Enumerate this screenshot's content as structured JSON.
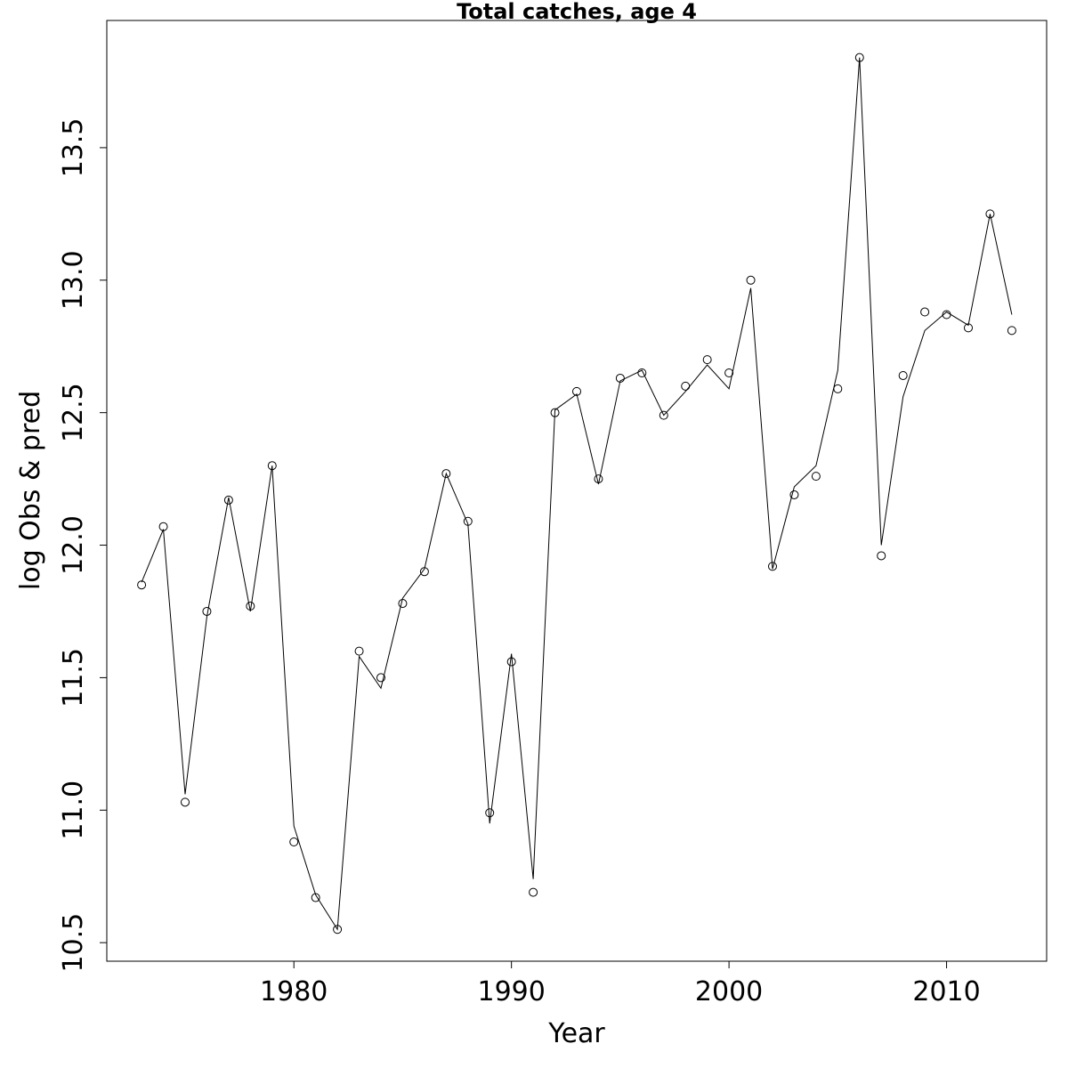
{
  "chart_data": {
    "type": "line",
    "title": "Total catches, age 4",
    "xlabel": "Year",
    "ylabel": "log Obs & pred",
    "xlim": [
      1971.4,
      2014.6
    ],
    "ylim": [
      10.43,
      13.98
    ],
    "x_ticks": [
      1980,
      1990,
      2000,
      2010
    ],
    "x_tick_labels": [
      "1980",
      "1990",
      "2000",
      "2010"
    ],
    "y_ticks": [
      10.5,
      11.0,
      11.5,
      12.0,
      12.5,
      13.0,
      13.5
    ],
    "y_tick_labels": [
      "10.5",
      "11.0",
      "11.5",
      "12.0",
      "12.5",
      "13.0",
      "13.5"
    ],
    "grid": false,
    "legend": "none",
    "x": [
      1973,
      1974,
      1975,
      1976,
      1977,
      1978,
      1979,
      1980,
      1981,
      1982,
      1983,
      1984,
      1985,
      1986,
      1987,
      1988,
      1989,
      1990,
      1991,
      1992,
      1993,
      1994,
      1995,
      1996,
      1997,
      1998,
      1999,
      2000,
      2001,
      2002,
      2003,
      2004,
      2005,
      2006,
      2007,
      2008,
      2009,
      2010,
      2011,
      2012,
      2013
    ],
    "series": [
      {
        "style": "points",
        "marker": "open-circle",
        "values": [
          11.85,
          12.07,
          11.03,
          11.75,
          12.17,
          11.77,
          12.3,
          10.88,
          10.67,
          10.55,
          11.6,
          11.5,
          11.78,
          11.9,
          12.27,
          12.09,
          10.99,
          11.56,
          10.69,
          12.5,
          12.58,
          12.25,
          12.63,
          12.65,
          12.49,
          12.6,
          12.7,
          12.65,
          13.0,
          11.92,
          12.19,
          12.26,
          12.59,
          13.84,
          11.96,
          12.64,
          12.88,
          12.87,
          12.82,
          13.25,
          12.81
        ]
      },
      {
        "style": "line",
        "values": [
          11.86,
          12.06,
          11.06,
          11.73,
          12.18,
          11.75,
          12.3,
          10.94,
          10.68,
          10.55,
          11.58,
          11.46,
          11.8,
          11.91,
          12.27,
          12.08,
          10.95,
          11.59,
          10.74,
          12.51,
          12.57,
          12.23,
          12.62,
          12.66,
          12.49,
          12.58,
          12.68,
          12.59,
          12.97,
          11.91,
          12.22,
          12.3,
          12.66,
          13.84,
          12.0,
          12.56,
          12.81,
          12.88,
          12.83,
          13.25,
          12.87
        ]
      }
    ]
  }
}
